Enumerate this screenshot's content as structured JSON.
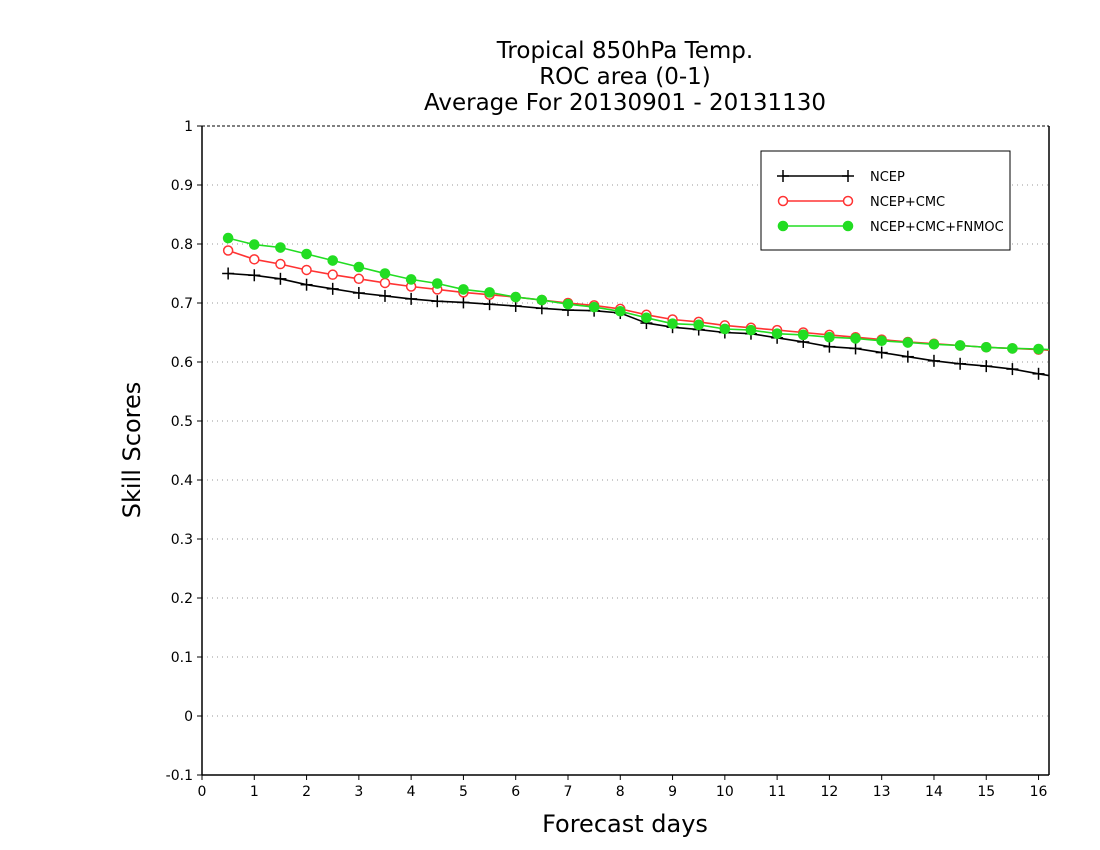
{
  "chart_data": {
    "type": "line",
    "title": [
      "Tropical 850hPa Temp.",
      "ROC area (0-1)",
      "Average For 20130901 - 20131130"
    ],
    "xlabel": "Forecast days",
    "ylabel": "Skill Scores",
    "xlim": [
      0,
      16.2
    ],
    "ylim": [
      -0.1,
      1
    ],
    "xticks": [
      0,
      1,
      2,
      3,
      4,
      5,
      6,
      7,
      8,
      9,
      10,
      11,
      12,
      13,
      14,
      15,
      16
    ],
    "yticks": [
      -0.1,
      0,
      0.1,
      0.2,
      0.3,
      0.4,
      0.5,
      0.6,
      0.7,
      0.8,
      0.9,
      1
    ],
    "ytick_labels": [
      "-0.1",
      "0",
      "0.1",
      "0.2",
      "0.3",
      "0.4",
      "0.5",
      "0.6",
      "0.7",
      "0.8",
      "0.9",
      "1"
    ],
    "grid": "horizontal dotted",
    "legend_position": "top-right",
    "x": [
      0.5,
      1,
      1.5,
      2,
      2.5,
      3,
      3.5,
      4,
      4.5,
      5,
      5.5,
      6,
      6.5,
      7,
      7.5,
      8,
      8.5,
      9,
      9.5,
      10,
      10.5,
      11,
      11.5,
      12,
      12.5,
      13,
      13.5,
      14,
      14.5,
      15,
      15.5,
      16,
      16.2
    ],
    "series": [
      {
        "name": "NCEP",
        "color": "#000000",
        "marker": "plus",
        "values": [
          0.75,
          0.747,
          0.741,
          0.731,
          0.724,
          0.717,
          0.712,
          0.707,
          0.703,
          0.701,
          0.698,
          0.695,
          0.691,
          0.688,
          0.687,
          0.683,
          0.666,
          0.659,
          0.655,
          0.65,
          0.648,
          0.641,
          0.634,
          0.626,
          0.623,
          0.616,
          0.609,
          0.602,
          0.597,
          0.593,
          0.588,
          0.58,
          0.577
        ]
      },
      {
        "name": "NCEP+CMC",
        "color": "#ff3333",
        "marker": "open-circle",
        "values": [
          0.789,
          0.774,
          0.766,
          0.756,
          0.748,
          0.741,
          0.734,
          0.728,
          0.723,
          0.718,
          0.714,
          0.71,
          0.705,
          0.7,
          0.696,
          0.69,
          0.68,
          0.672,
          0.668,
          0.662,
          0.658,
          0.654,
          0.65,
          0.646,
          0.642,
          0.638,
          0.634,
          0.631,
          0.628,
          0.625,
          0.623,
          0.621,
          0.62
        ]
      },
      {
        "name": "NCEP+CMC+FNMOC",
        "color": "#22dd22",
        "marker": "filled-circle",
        "values": [
          0.81,
          0.799,
          0.794,
          0.783,
          0.772,
          0.761,
          0.75,
          0.74,
          0.733,
          0.723,
          0.718,
          0.71,
          0.705,
          0.698,
          0.693,
          0.686,
          0.675,
          0.665,
          0.663,
          0.656,
          0.654,
          0.648,
          0.646,
          0.642,
          0.64,
          0.636,
          0.633,
          0.63,
          0.628,
          0.625,
          0.623,
          0.622,
          0.621
        ]
      }
    ]
  }
}
